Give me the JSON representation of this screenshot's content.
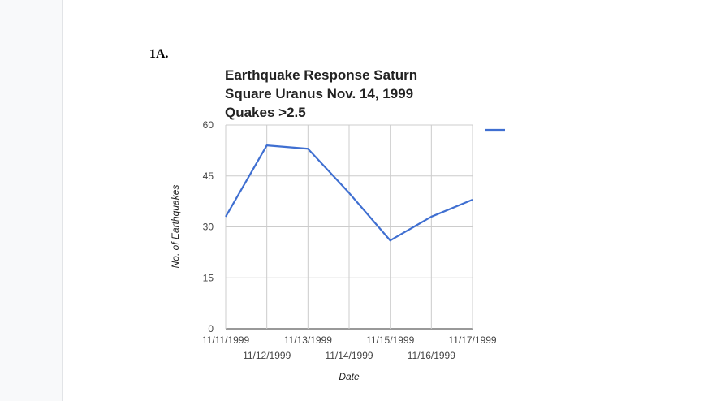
{
  "section_label": "1A.",
  "chart_data": {
    "type": "line",
    "title": "Earthquake Response Saturn Square Uranus Nov. 14, 1999 Quakes >2.5",
    "xlabel": "Date",
    "ylabel": "No. of Earthquakes",
    "categories": [
      "11/11/1999",
      "11/12/1999",
      "11/13/1999",
      "11/14/1999",
      "11/15/1999",
      "11/16/1999",
      "11/17/1999"
    ],
    "series": [
      {
        "values": [
          33,
          54,
          53,
          40,
          26,
          33,
          38
        ],
        "color": "#3f6fd1"
      }
    ],
    "ylim": [
      0,
      60
    ],
    "yticks": [
      "0",
      "15",
      "30",
      "45",
      "60"
    ],
    "grid": true,
    "legend": "right"
  }
}
